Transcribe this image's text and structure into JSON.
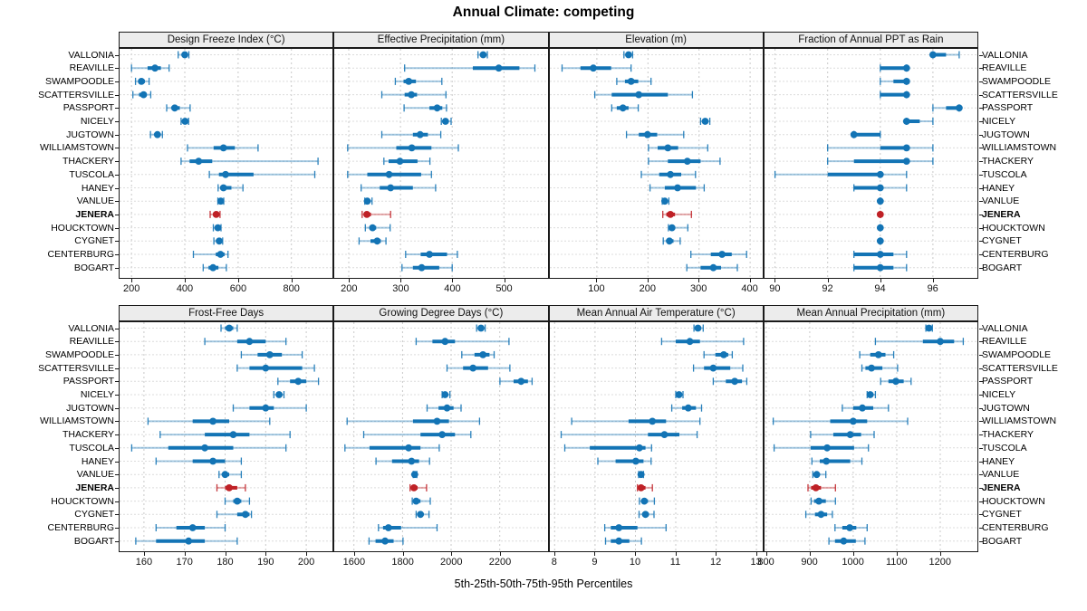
{
  "title": "Annual Climate: competing",
  "caption": "5th-25th-50th-75th-95th Percentiles",
  "highlight_location": "JENERA",
  "colors": {
    "series": "#1374b5",
    "highlight": "#bf2126",
    "header_bg": "#ececec",
    "panel_border": "#1a1a1a",
    "grid_vertical": "#c9c9c9",
    "grid_horizontal": "#dcdcdc"
  },
  "locations": [
    "VALLONIA",
    "REAVILLE",
    "SWAMPOODLE",
    "SCATTERSVILLE",
    "PASSPORT",
    "NICELY",
    "JUGTOWN",
    "WILLIAMSTOWN",
    "THACKERY",
    "TUSCOLA",
    "HANEY",
    "VANLUE",
    "JENERA",
    "HOUCKTOWN",
    "CYGNET",
    "CENTERBURG",
    "BOGART"
  ],
  "chart_data": {
    "type": "dotplot-percentiles",
    "percentiles": [
      "5th",
      "25th",
      "50th",
      "75th",
      "95th"
    ],
    "layout": {
      "rows": 2,
      "cols": 4,
      "legend": "none",
      "grid": "dashed"
    },
    "panels": [
      {
        "title": "Design Freeze Index (°C)",
        "row": "top",
        "ticks": [
          200,
          400,
          600,
          800
        ],
        "domain": [
          155,
          955
        ],
        "values": [
          [
            375,
            392,
            400,
            406,
            415
          ],
          [
            200,
            260,
            288,
            310,
            341
          ],
          [
            215,
            226,
            237,
            250,
            266
          ],
          [
            205,
            228,
            245,
            257,
            272
          ],
          [
            332,
            350,
            362,
            381,
            420
          ],
          [
            386,
            395,
            401,
            407,
            414
          ],
          [
            271,
            286,
            297,
            306,
            316
          ],
          [
            410,
            508,
            545,
            588,
            675
          ],
          [
            386,
            418,
            452,
            503,
            900
          ],
          [
            492,
            528,
            553,
            658,
            888
          ],
          [
            525,
            533,
            545,
            575,
            618
          ],
          [
            524,
            530,
            535,
            540,
            546
          ],
          [
            495,
            508,
            518,
            526,
            532
          ],
          [
            507,
            516,
            524,
            530,
            536
          ],
          [
            509,
            519,
            529,
            536,
            542
          ],
          [
            432,
            516,
            534,
            549,
            562
          ],
          [
            469,
            489,
            506,
            526,
            556
          ]
        ]
      },
      {
        "title": "Effective Precipitation (mm)",
        "row": "top",
        "ticks": [
          200,
          300,
          400,
          500
        ],
        "domain": [
          172,
          584
        ],
        "values": [
          [
            450,
            456,
            460,
            463,
            468
          ],
          [
            308,
            440,
            490,
            530,
            560
          ],
          [
            290,
            306,
            316,
            330,
            380
          ],
          [
            264,
            308,
            321,
            332,
            388
          ],
          [
            307,
            356,
            371,
            381,
            389
          ],
          [
            379,
            384,
            387,
            391,
            398
          ],
          [
            264,
            324,
            338,
            353,
            378
          ],
          [
            198,
            292,
            322,
            360,
            412
          ],
          [
            268,
            277,
            299,
            333,
            357
          ],
          [
            198,
            236,
            278,
            340,
            360
          ],
          [
            224,
            260,
            281,
            324,
            368
          ],
          [
            231,
            234,
            236,
            240,
            245
          ],
          [
            226,
            230,
            235,
            243,
            281
          ],
          [
            232,
            240,
            246,
            253,
            280
          ],
          [
            220,
            242,
            255,
            262,
            272
          ],
          [
            310,
            339,
            356,
            390,
            410
          ],
          [
            303,
            324,
            341,
            375,
            400
          ]
        ]
      },
      {
        "title": "Elevation (m)",
        "row": "top",
        "ticks": [
          100,
          200,
          300,
          400
        ],
        "domain": [
          8,
          425
        ],
        "values": [
          [
            153,
            158,
            162,
            166,
            170
          ],
          [
            32,
            68,
            93,
            128,
            167
          ],
          [
            139,
            155,
            167,
            181,
            206
          ],
          [
            96,
            129,
            182,
            239,
            287
          ],
          [
            129,
            139,
            151,
            162,
            181
          ],
          [
            303,
            308,
            312,
            316,
            321
          ],
          [
            158,
            182,
            199,
            218,
            270
          ],
          [
            201,
            219,
            239,
            259,
            317
          ],
          [
            201,
            239,
            277,
            303,
            341
          ],
          [
            187,
            222,
            244,
            265,
            293
          ],
          [
            204,
            233,
            258,
            294,
            310
          ],
          [
            228,
            231,
            233,
            236,
            241
          ],
          [
            229,
            236,
            244,
            253,
            285
          ],
          [
            240,
            244,
            247,
            253,
            278
          ],
          [
            230,
            238,
            242,
            250,
            263
          ],
          [
            284,
            323,
            345,
            364,
            393
          ],
          [
            276,
            303,
            328,
            343,
            375
          ]
        ]
      },
      {
        "title": "Fraction of Annual PPT as Rain",
        "row": "top",
        "ticks": [
          90,
          92,
          94,
          96
        ],
        "domain": [
          89.6,
          97.7
        ],
        "values": [
          [
            96,
            96,
            96,
            96.5,
            97
          ],
          [
            94,
            94,
            95,
            95,
            95
          ],
          [
            94,
            94.5,
            95,
            95,
            95
          ],
          [
            94,
            94,
            95,
            95,
            95
          ],
          [
            96,
            96.5,
            97,
            97,
            97
          ],
          [
            95,
            95,
            95,
            95.5,
            96
          ],
          [
            93,
            93,
            93,
            94,
            94
          ],
          [
            92,
            94,
            95,
            95,
            96
          ],
          [
            92,
            93,
            95,
            95,
            96
          ],
          [
            90,
            92,
            94,
            94,
            95
          ],
          [
            93,
            93,
            94,
            94,
            95
          ],
          [
            94,
            94,
            94,
            94,
            94
          ],
          [
            94,
            94,
            94,
            94,
            94
          ],
          [
            94,
            94,
            94,
            94,
            94
          ],
          [
            94,
            94,
            94,
            94,
            94
          ],
          [
            93,
            93,
            94,
            94.5,
            95
          ],
          [
            93,
            93,
            94,
            94.5,
            95
          ]
        ]
      },
      {
        "title": "Frost-Free Days",
        "row": "bottom",
        "ticks": [
          160,
          170,
          180,
          190,
          200
        ],
        "domain": [
          154,
          206.5
        ],
        "values": [
          [
            179,
            180,
            181,
            182,
            183
          ],
          [
            175,
            183,
            186,
            190,
            195
          ],
          [
            184,
            188,
            191,
            194,
            199
          ],
          [
            183,
            186,
            190,
            199,
            202
          ],
          [
            193,
            196,
            198,
            200,
            203
          ],
          [
            192,
            192.8,
            193.3,
            193.8,
            194.5
          ],
          [
            182,
            186,
            190,
            192,
            200
          ],
          [
            161,
            172,
            177,
            181,
            191
          ],
          [
            164,
            175,
            182,
            186,
            196
          ],
          [
            157,
            166,
            175,
            182,
            195
          ],
          [
            163,
            172,
            177,
            180,
            184
          ],
          [
            178.5,
            179.5,
            180,
            181,
            184
          ],
          [
            178,
            180,
            181,
            183,
            185
          ],
          [
            180,
            182,
            183,
            184,
            186
          ],
          [
            178,
            183,
            185,
            186,
            186.5
          ],
          [
            163,
            168,
            172,
            175,
            180
          ],
          [
            158,
            163,
            171,
            175,
            183
          ]
        ]
      },
      {
        "title": "Growing Degree Days (°C)",
        "row": "bottom",
        "ticks": [
          1600,
          1800,
          2000,
          2200
        ],
        "domain": [
          1519,
          2396
        ],
        "values": [
          [
            2105,
            2115,
            2123,
            2131,
            2140
          ],
          [
            1856,
            1923,
            1975,
            2016,
            2238
          ],
          [
            2044,
            2096,
            2131,
            2158,
            2177
          ],
          [
            1983,
            2049,
            2090,
            2152,
            2242
          ],
          [
            2201,
            2257,
            2288,
            2316,
            2333
          ],
          [
            1963,
            1970,
            1975,
            1985,
            1995
          ],
          [
            1901,
            1948,
            1983,
            2010,
            2041
          ],
          [
            1572,
            1843,
            1942,
            1991,
            2117
          ],
          [
            1640,
            1874,
            1963,
            2016,
            2081
          ],
          [
            1563,
            1664,
            1825,
            1874,
            1951
          ],
          [
            1691,
            1757,
            1837,
            1868,
            1911
          ],
          [
            1844,
            1847,
            1850,
            1854,
            1859
          ],
          [
            1831,
            1838,
            1847,
            1862,
            1899
          ],
          [
            1840,
            1848,
            1856,
            1874,
            1914
          ],
          [
            1856,
            1865,
            1874,
            1885,
            1909
          ],
          [
            1701,
            1720,
            1742,
            1794,
            1942
          ],
          [
            1662,
            1689,
            1728,
            1763,
            1802
          ]
        ]
      },
      {
        "title": "Mean Annual Air Temperature (°C)",
        "row": "bottom",
        "ticks": [
          8,
          9,
          10,
          11,
          12,
          13
        ],
        "domain": [
          7.88,
          13.16
        ],
        "values": [
          [
            11.45,
            11.5,
            11.55,
            11.62,
            11.68
          ],
          [
            10.65,
            11.0,
            11.35,
            11.6,
            12.68
          ],
          [
            11.7,
            11.98,
            12.19,
            12.3,
            12.4
          ],
          [
            11.44,
            11.7,
            11.93,
            12.35,
            12.66
          ],
          [
            11.93,
            12.24,
            12.46,
            12.64,
            12.76
          ],
          [
            11.0,
            11.05,
            11.08,
            11.13,
            11.18
          ],
          [
            10.9,
            11.16,
            11.31,
            11.5,
            11.64
          ],
          [
            8.42,
            9.83,
            10.42,
            10.76,
            11.6
          ],
          [
            8.16,
            10.31,
            10.72,
            11.09,
            11.53
          ],
          [
            8.25,
            8.87,
            10.1,
            10.25,
            10.4
          ],
          [
            9.07,
            9.51,
            10.01,
            10.2,
            10.39
          ],
          [
            10.08,
            10.11,
            10.14,
            10.17,
            10.2
          ],
          [
            10.05,
            10.09,
            10.14,
            10.25,
            10.42
          ],
          [
            10.1,
            10.16,
            10.22,
            10.31,
            10.47
          ],
          [
            10.09,
            10.17,
            10.25,
            10.33,
            10.46
          ],
          [
            9.24,
            9.39,
            9.59,
            10.05,
            10.76
          ],
          [
            9.26,
            9.39,
            9.59,
            9.85,
            10.15
          ]
        ]
      },
      {
        "title": "Mean Annual Precipitation (mm)",
        "row": "bottom",
        "ticks": [
          800,
          900,
          1000,
          1100,
          1200
        ],
        "domain": [
          796,
          1286
        ],
        "values": [
          [
            1167,
            1171,
            1174,
            1178,
            1182
          ],
          [
            1051,
            1160,
            1200,
            1232,
            1253
          ],
          [
            1015,
            1039,
            1058,
            1074,
            1093
          ],
          [
            1020,
            1028,
            1042,
            1067,
            1102
          ],
          [
            1063,
            1081,
            1098,
            1116,
            1133
          ],
          [
            1032,
            1036,
            1039,
            1044,
            1051
          ],
          [
            975,
            1000,
            1021,
            1046,
            1081
          ],
          [
            816,
            947,
            1000,
            1032,
            1125
          ],
          [
            902,
            954,
            993,
            1018,
            1048
          ],
          [
            818,
            902,
            940,
            1002,
            1035
          ],
          [
            905,
            923,
            938,
            993,
            1020
          ],
          [
            907,
            912,
            916,
            922,
            937
          ],
          [
            896,
            903,
            914,
            926,
            959
          ],
          [
            903,
            910,
            921,
            937,
            959
          ],
          [
            891,
            912,
            926,
            940,
            952
          ],
          [
            958,
            975,
            992,
            1007,
            1032
          ],
          [
            944,
            958,
            978,
            1006,
            1027
          ]
        ]
      }
    ]
  }
}
